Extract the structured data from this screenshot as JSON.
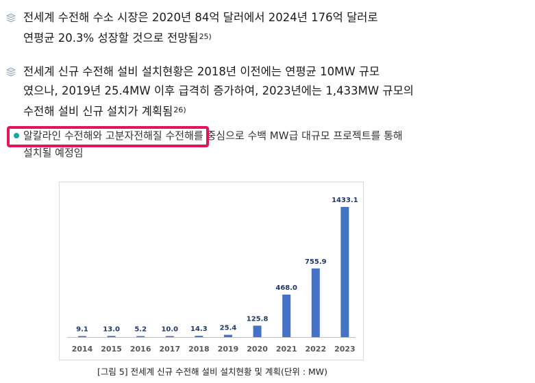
{
  "paragraphs": [
    {
      "icon": "book-stack-icon",
      "lines": [
        "전세계 수전해 수소 시장은 2020년 84억 달러에서 2024년 176억 달러로",
        "연평균 20.3% 성장할 것으로 전망됨"
      ],
      "footnote": "25)"
    },
    {
      "icon": "book-stack-icon",
      "lines": [
        "전세계 신규 수전해 설비 설치현황은 2018년 이전에는 연평균 10MW 규모",
        "였으나, 2019년 25.4MW 이후 급격히 증가하여, 2023년에는 1,433MW 규모의",
        "수전해 설비 신규 설치가 계획됨"
      ],
      "footnote": "26)"
    }
  ],
  "bullet": {
    "icon": "teal-dot-icon",
    "lines": [
      "알칼라인 수전해와 고분자전해질 수전해를 중심으로 수백 MW급 대규모 프로젝트를 통해",
      "설치될 예정임"
    ],
    "highlight_color": "#e0145f"
  },
  "caption": "[그림 5] 전세계 신규 수전해 설비 설치현황 및 계획(단위 : MW)",
  "chart_data": {
    "type": "bar",
    "categories": [
      "2014",
      "2015",
      "2016",
      "2017",
      "2018",
      "2019",
      "2020",
      "2021",
      "2022",
      "2023"
    ],
    "values": [
      9.1,
      13.0,
      5.2,
      10.0,
      14.3,
      25.4,
      125.8,
      468.0,
      755.9,
      1433.1
    ],
    "value_labels": [
      "9.1",
      "13.0",
      "5.2",
      "10.0",
      "14.3",
      "25.4",
      "125.8",
      "468.0",
      "755.9",
      "1433.1"
    ],
    "title": "",
    "xlabel": "",
    "ylabel": "",
    "ylim": [
      0,
      1433.1
    ],
    "grid": false,
    "legend": "none",
    "bar_color": "#4472c4",
    "label_color": "#1f3864"
  }
}
